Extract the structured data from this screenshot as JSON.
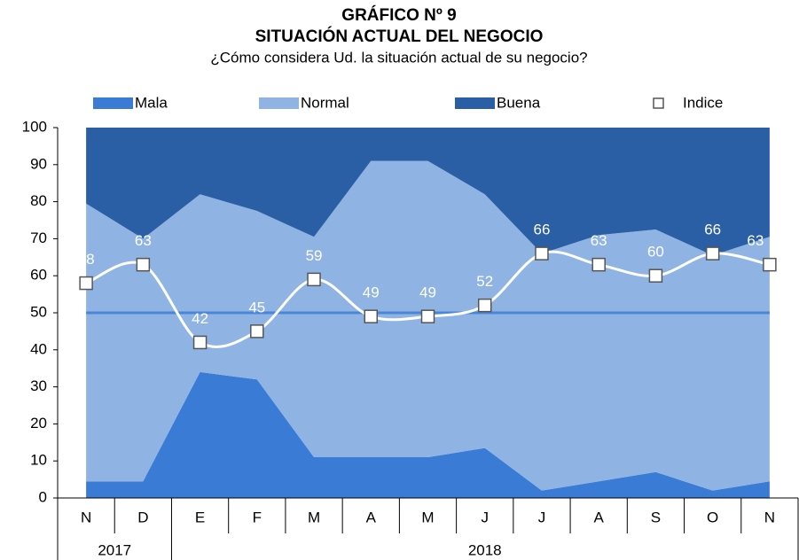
{
  "chart_data": {
    "type": "area",
    "title": "GRÁFICO Nº 9",
    "subtitle": "SITUACIÓN ACTUAL DEL NEGOCIO",
    "question": "¿Cómo considera Ud. la situación actual de su negocio?",
    "categories": [
      "N",
      "D",
      "E",
      "F",
      "M",
      "A",
      "M",
      "J",
      "J",
      "A",
      "S",
      "O",
      "N"
    ],
    "x_groups": [
      {
        "label": "2017",
        "categories": 2
      },
      {
        "label": "2018",
        "categories": 11
      }
    ],
    "series": [
      {
        "name": "Mala",
        "type": "area",
        "color": "#3a7bd5",
        "values": [
          4.5,
          4.5,
          34,
          32,
          11,
          11,
          11,
          13.5,
          2,
          4.5,
          7,
          2,
          4.5
        ]
      },
      {
        "name": "Normal",
        "type": "area",
        "color": "#8fb4e3",
        "values": [
          75,
          65.5,
          48,
          45.5,
          59.5,
          80,
          80,
          68.5,
          64,
          66.5,
          65.5,
          63.5,
          66
        ]
      },
      {
        "name": "Buena",
        "type": "area",
        "color": "#2a5fa5",
        "values": [
          20.5,
          30,
          18,
          22.5,
          29.5,
          9,
          9,
          18,
          34,
          29,
          27.5,
          34.5,
          29.5
        ]
      },
      {
        "name": "Indice",
        "type": "line",
        "color": "#ffffff",
        "values": [
          58,
          63,
          42,
          45,
          59,
          49,
          49,
          52,
          66,
          63,
          60,
          66,
          63
        ]
      }
    ],
    "reference_line": {
      "value": 50,
      "color": "#4a86d8"
    },
    "ylim": [
      0,
      100
    ],
    "yticks": [
      0,
      10,
      20,
      30,
      40,
      50,
      60,
      70,
      80,
      90,
      100
    ]
  }
}
